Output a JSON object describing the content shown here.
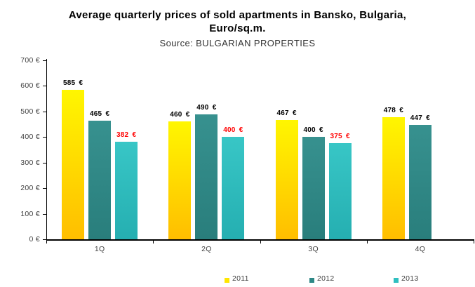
{
  "header": {
    "title_line1": "Average quarterly prices of sold apartments in Bansko, Bulgaria,",
    "title_line2": "Euro/sq.m.",
    "source_line": "Source: BULGARIAN PROPERTIES"
  },
  "chart_data": {
    "type": "bar",
    "title": "Average quarterly prices of sold apartments in Bansko, Bulgaria, Euro/sq.m.",
    "subtitle": "Source: BULGARIAN PROPERTIES",
    "categories": [
      "1Q",
      "2Q",
      "3Q",
      "4Q"
    ],
    "series": [
      {
        "name": "2011",
        "values": [
          585,
          460,
          467,
          478
        ],
        "color_top": "#FFF600",
        "color_bottom": "#FFBE00",
        "legend_color": "#FFE600",
        "label_color": "#000000"
      },
      {
        "name": "2012",
        "values": [
          465,
          490,
          400,
          447
        ],
        "color_top": "#37918F",
        "color_bottom": "#297E7C",
        "legend_color": "#2E8886",
        "label_color": "#000000"
      },
      {
        "name": "2013",
        "values": [
          382,
          400,
          375,
          null
        ],
        "color_top": "#38C6C6",
        "color_bottom": "#25AFB1",
        "legend_color": "#2FBFC0",
        "label_color": "#FF0000"
      }
    ],
    "value_suffix": " €",
    "ylim": [
      0,
      700
    ],
    "ytick_step": 100,
    "xlabel": "",
    "ylabel": "",
    "grid": false,
    "legend_position": "bottom",
    "axis_text_color": "#404040",
    "axis_line_color": "#000000"
  }
}
